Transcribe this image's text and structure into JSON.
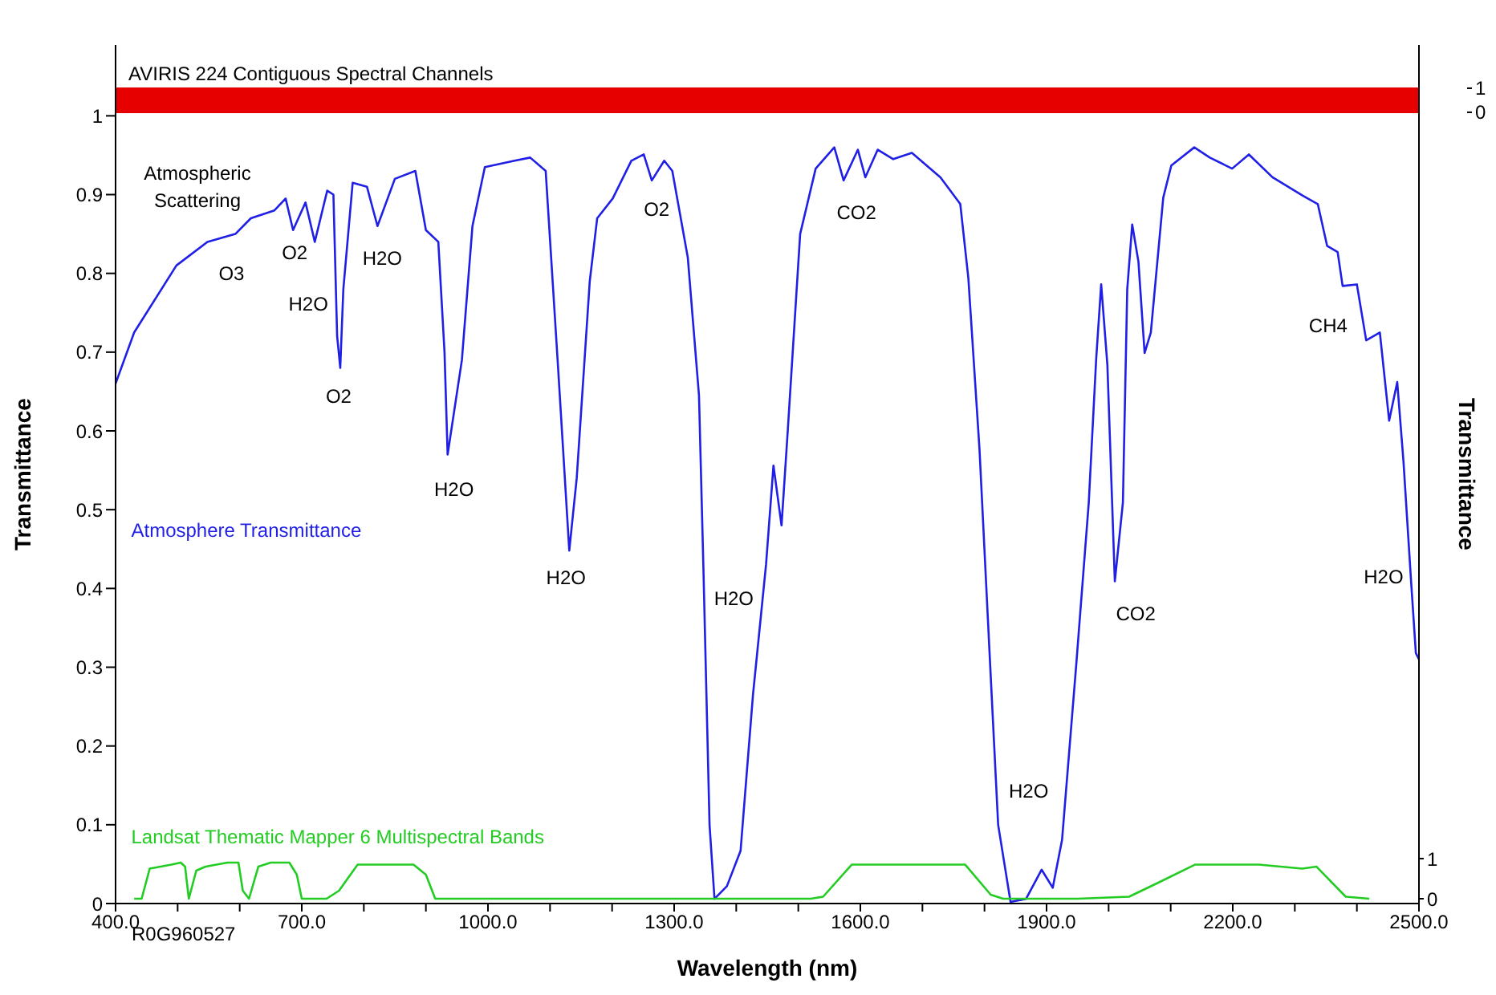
{
  "chart_data": {
    "type": "line",
    "xlabel": "Wavelength (nm)",
    "ylabel": "Transmittance",
    "y2label": "Transmittance",
    "xlim": [
      400,
      2500
    ],
    "xticks": [
      {
        "value": 400,
        "label": "400.0"
      },
      {
        "value": 500,
        "label": null
      },
      {
        "value": 600,
        "label": null
      },
      {
        "value": 700,
        "label": "700.0"
      },
      {
        "value": 800,
        "label": null
      },
      {
        "value": 900,
        "label": null
      },
      {
        "value": 1000,
        "label": "1000.0"
      },
      {
        "value": 1100,
        "label": null
      },
      {
        "value": 1200,
        "label": null
      },
      {
        "value": 1300,
        "label": "1300.0"
      },
      {
        "value": 1400,
        "label": null
      },
      {
        "value": 1500,
        "label": null
      },
      {
        "value": 1600,
        "label": "1600.0"
      },
      {
        "value": 1700,
        "label": null
      },
      {
        "value": 1800,
        "label": null
      },
      {
        "value": 1900,
        "label": "1900.0"
      },
      {
        "value": 2000,
        "label": null
      },
      {
        "value": 2100,
        "label": null
      },
      {
        "value": 2200,
        "label": "2200.0"
      },
      {
        "value": 2300,
        "label": null
      },
      {
        "value": 2400,
        "label": null
      },
      {
        "value": 2500,
        "label": "2500.0"
      }
    ],
    "ylim": [
      0,
      1.09
    ],
    "yticks": [
      0,
      0.1,
      0.2,
      0.3,
      0.4,
      0.5,
      0.6,
      0.7,
      0.8,
      0.9,
      1
    ],
    "y2lim": [
      -0.12,
      21.3
    ],
    "y2ticks": [
      0,
      1
    ],
    "y3lim": [
      -32.9,
      2.8
    ],
    "y3ticks": [
      0,
      1
    ],
    "grid": false,
    "legend": false,
    "series": [
      {
        "name": "Atmosphere Transmittance",
        "color": "#1f1fe6",
        "x": [
          400,
          430,
          498,
          548,
          593,
          618,
          656,
          674,
          686,
          706,
          721,
          741,
          751,
          757,
          762,
          767,
          782,
          805,
          822,
          850,
          883,
          900,
          920,
          930,
          935,
          958,
          975,
          995,
          1043,
          1068,
          1093,
          1113,
          1131,
          1143,
          1164,
          1176,
          1201,
          1231,
          1251,
          1264,
          1284,
          1297,
          1322,
          1340,
          1347,
          1357,
          1365,
          1385,
          1407,
          1427,
          1448,
          1460,
          1473,
          1483,
          1503,
          1528,
          1558,
          1573,
          1596,
          1608,
          1628,
          1653,
          1683,
          1729,
          1761,
          1774,
          1792,
          1809,
          1822,
          1842,
          1867,
          1892,
          1910,
          1925,
          1948,
          1968,
          1980,
          1988,
          1998,
          2010,
          2023,
          2030,
          2038,
          2048,
          2058,
          2068,
          2088,
          2101,
          2138,
          2163,
          2199,
          2226,
          2264,
          2314,
          2337,
          2352,
          2369,
          2377,
          2400,
          2415,
          2437,
          2452,
          2465,
          2475,
          2487,
          2495,
          2500
        ],
        "values": [
          0.66,
          0.725,
          0.81,
          0.84,
          0.85,
          0.87,
          0.88,
          0.895,
          0.855,
          0.89,
          0.84,
          0.905,
          0.9,
          0.72,
          0.68,
          0.78,
          0.915,
          0.91,
          0.86,
          0.92,
          0.93,
          0.855,
          0.84,
          0.7,
          0.57,
          0.69,
          0.86,
          0.935,
          0.943,
          0.947,
          0.93,
          0.68,
          0.448,
          0.54,
          0.79,
          0.87,
          0.895,
          0.943,
          0.951,
          0.918,
          0.943,
          0.93,
          0.82,
          0.645,
          0.43,
          0.1,
          0.006,
          0.022,
          0.067,
          0.265,
          0.43,
          0.556,
          0.48,
          0.6,
          0.85,
          0.933,
          0.96,
          0.918,
          0.957,
          0.922,
          0.957,
          0.945,
          0.953,
          0.922,
          0.888,
          0.794,
          0.576,
          0.305,
          0.1,
          0.002,
          0.006,
          0.043,
          0.02,
          0.081,
          0.305,
          0.509,
          0.692,
          0.786,
          0.684,
          0.409,
          0.509,
          0.78,
          0.862,
          0.815,
          0.699,
          0.725,
          0.896,
          0.937,
          0.96,
          0.947,
          0.933,
          0.951,
          0.922,
          0.898,
          0.888,
          0.835,
          0.827,
          0.784,
          0.786,
          0.715,
          0.725,
          0.613,
          0.662,
          0.562,
          0.413,
          0.318,
          0.31
        ]
      },
      {
        "name": "Landsat Thematic Mapper 6 Multispectral Bands",
        "color": "#22cc22",
        "axis": "y2",
        "x": [
          430,
          442,
          455,
          490,
          505,
          512,
          518,
          530,
          545,
          580,
          598,
          605,
          615,
          630,
          650,
          680,
          692,
          700,
          740,
          760,
          790,
          880,
          900,
          915,
          1520,
          1540,
          1586,
          1769,
          1810,
          1830,
          1950,
          2033,
          2080,
          2139,
          2242,
          2312,
          2335,
          2382,
          2420
        ],
        "values": [
          0,
          0,
          0.75,
          0.85,
          0.9,
          0.8,
          0,
          0.7,
          0.8,
          0.9,
          0.9,
          0.2,
          0,
          0.8,
          0.9,
          0.9,
          0.6,
          0,
          0,
          0.2,
          0.85,
          0.85,
          0.6,
          0,
          0,
          0.05,
          0.85,
          0.85,
          0.1,
          0,
          0,
          0.05,
          0.4,
          0.85,
          0.85,
          0.75,
          0.8,
          0.05,
          0
        ]
      }
    ],
    "bands": [
      {
        "axis": "y3",
        "from": 0,
        "to": 1,
        "label": "AVIRIS 224 Contiguous Spectral Channels",
        "color": "#e60000"
      }
    ],
    "annotations": [
      "Atmospheric Scattering",
      "R0G960527",
      {
        "text": "O3",
        "x": 548,
        "y": 0.84
      },
      {
        "text": "O2",
        "x": 686,
        "y": 0.855
      },
      {
        "text": "H2O",
        "x": 721,
        "y": 0.84
      },
      {
        "text": "O2",
        "x": 762,
        "y": 0.68
      },
      {
        "text": "H2O",
        "x": 822,
        "y": 0.86
      },
      {
        "text": "H2O",
        "x": 935,
        "y": 0.57
      },
      {
        "text": "H2O",
        "x": 1131,
        "y": 0.448
      },
      {
        "text": "O2",
        "x": 1264,
        "y": 0.918
      },
      {
        "text": "H2O",
        "x": 1347,
        "y": 0.43
      },
      {
        "text": "CO2",
        "x": 1573,
        "y": 0.918
      },
      {
        "text": "H2O",
        "x": 1822,
        "y": 0.1
      },
      {
        "text": "CO2",
        "x": 2010,
        "y": 0.409
      },
      {
        "text": "CH4",
        "x": 2377,
        "y": 0.784
      },
      {
        "text": "H2O",
        "x": 2487,
        "y": 0.413
      }
    ]
  }
}
